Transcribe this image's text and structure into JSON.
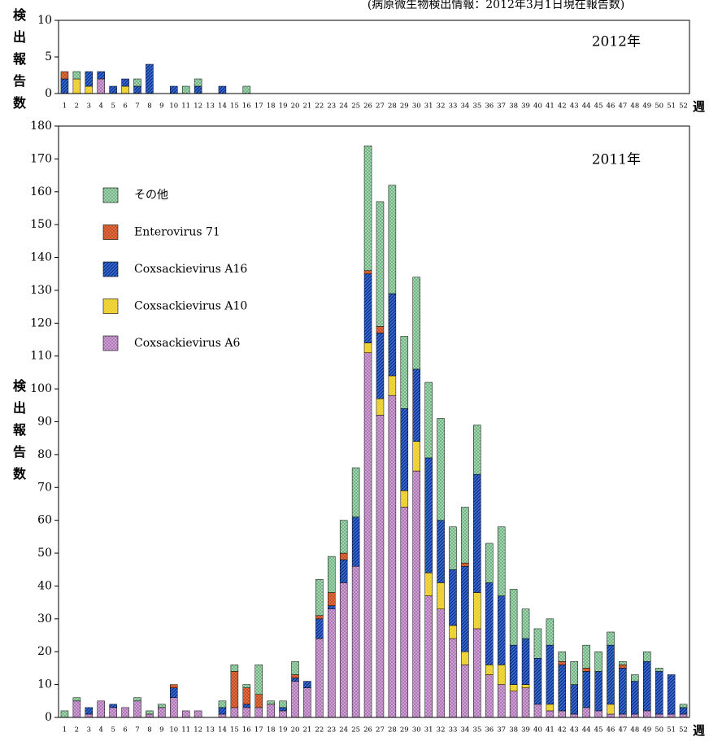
{
  "header": "(病原微生物検出情報：2012年3月1日現在報告数)",
  "chart_data": [
    {
      "type": "bar",
      "stacked": true,
      "title": "2012年",
      "ylabel": "検出報告数",
      "xlabel": "週",
      "categories": [
        "1",
        "2",
        "3",
        "4",
        "5",
        "6",
        "7",
        "8",
        "9",
        "10",
        "11",
        "12",
        "13",
        "14",
        "15",
        "16",
        "17",
        "18",
        "19",
        "20",
        "21",
        "22",
        "23",
        "24",
        "25",
        "26",
        "27",
        "28",
        "29",
        "30",
        "31",
        "32",
        "33",
        "34",
        "35",
        "36",
        "37",
        "38",
        "39",
        "40",
        "41",
        "42",
        "43",
        "44",
        "45",
        "46",
        "47",
        "48",
        "49",
        "50",
        "51",
        "52"
      ],
      "ylim": [
        0,
        10
      ],
      "yticks": [
        0,
        5,
        10
      ],
      "series": [
        {
          "name": "Coxsackievirus A6",
          "color": "#d9a0e0",
          "values": [
            0,
            0,
            0,
            2,
            0,
            0,
            0,
            0,
            0,
            0,
            0,
            0,
            0,
            0,
            0,
            0,
            null,
            null,
            null,
            null,
            null,
            null,
            null,
            null,
            null,
            null,
            null,
            null,
            null,
            null,
            null,
            null,
            null,
            null,
            null,
            null,
            null,
            null,
            null,
            null,
            null,
            null,
            null,
            null,
            null,
            null,
            null,
            null,
            null,
            null,
            null,
            null
          ]
        },
        {
          "name": "Coxsackievirus A10",
          "color": "#f5d83a",
          "values": [
            0,
            2,
            1,
            0,
            0,
            1,
            0,
            0,
            0,
            0,
            0,
            0,
            0,
            0,
            0,
            0,
            null,
            null,
            null,
            null,
            null,
            null,
            null,
            null,
            null,
            null,
            null,
            null,
            null,
            null,
            null,
            null,
            null,
            null,
            null,
            null,
            null,
            null,
            null,
            null,
            null,
            null,
            null,
            null,
            null,
            null,
            null,
            null,
            null,
            null,
            null,
            null
          ]
        },
        {
          "name": "Coxsackievirus A16",
          "color": "#3a6fd8",
          "values": [
            2,
            0,
            2,
            1,
            1,
            1,
            1,
            4,
            0,
            1,
            0,
            1,
            0,
            1,
            0,
            0,
            null,
            null,
            null,
            null,
            null,
            null,
            null,
            null,
            null,
            null,
            null,
            null,
            null,
            null,
            null,
            null,
            null,
            null,
            null,
            null,
            null,
            null,
            null,
            null,
            null,
            null,
            null,
            null,
            null,
            null,
            null,
            null,
            null,
            null,
            null,
            null
          ]
        },
        {
          "name": "Enterovirus 71",
          "color": "#f06a3a",
          "values": [
            1,
            0,
            0,
            0,
            0,
            0,
            0,
            0,
            0,
            0,
            0,
            0,
            0,
            0,
            0,
            0,
            null,
            null,
            null,
            null,
            null,
            null,
            null,
            null,
            null,
            null,
            null,
            null,
            null,
            null,
            null,
            null,
            null,
            null,
            null,
            null,
            null,
            null,
            null,
            null,
            null,
            null,
            null,
            null,
            null,
            null,
            null,
            null,
            null,
            null,
            null,
            null
          ]
        },
        {
          "name": "その他",
          "color": "#9fe0b0",
          "values": [
            0,
            1,
            0,
            0,
            0,
            0,
            1,
            0,
            0,
            0,
            1,
            1,
            0,
            0,
            0,
            1,
            null,
            null,
            null,
            null,
            null,
            null,
            null,
            null,
            null,
            null,
            null,
            null,
            null,
            null,
            null,
            null,
            null,
            null,
            null,
            null,
            null,
            null,
            null,
            null,
            null,
            null,
            null,
            null,
            null,
            null,
            null,
            null,
            null,
            null,
            null,
            null
          ]
        }
      ]
    },
    {
      "type": "bar",
      "stacked": true,
      "title": "2011年",
      "ylabel": "検出報告数",
      "xlabel": "週",
      "legend": "upper left",
      "categories": [
        "1",
        "2",
        "3",
        "4",
        "5",
        "6",
        "7",
        "8",
        "9",
        "10",
        "11",
        "12",
        "13",
        "14",
        "15",
        "16",
        "17",
        "18",
        "19",
        "20",
        "21",
        "22",
        "23",
        "24",
        "25",
        "26",
        "27",
        "28",
        "29",
        "30",
        "31",
        "32",
        "33",
        "34",
        "35",
        "36",
        "37",
        "38",
        "39",
        "40",
        "41",
        "42",
        "43",
        "44",
        "45",
        "46",
        "47",
        "48",
        "49",
        "50",
        "51",
        "52"
      ],
      "ylim": [
        0,
        180
      ],
      "yticks": [
        0,
        10,
        20,
        30,
        40,
        50,
        60,
        70,
        80,
        90,
        100,
        110,
        120,
        130,
        140,
        150,
        160,
        170,
        180
      ],
      "series": [
        {
          "name": "Coxsackievirus A6",
          "color": "#d9a0e0",
          "values": [
            0,
            5,
            1,
            5,
            3,
            3,
            5,
            1,
            3,
            6,
            2,
            2,
            0,
            1,
            3,
            3,
            3,
            4,
            2,
            11,
            9,
            24,
            33,
            41,
            46,
            111,
            92,
            98,
            64,
            75,
            37,
            33,
            24,
            16,
            27,
            13,
            10,
            8,
            9,
            4,
            2,
            2,
            1,
            3,
            2,
            1,
            1,
            1,
            2,
            1,
            1,
            1
          ]
        },
        {
          "name": "Coxsackievirus A10",
          "color": "#f5d83a",
          "values": [
            0,
            0,
            0,
            0,
            0,
            0,
            0,
            0,
            0,
            0,
            0,
            0,
            0,
            0,
            0,
            0,
            0,
            0,
            0,
            0,
            0,
            0,
            0,
            0,
            0,
            3,
            5,
            6,
            5,
            9,
            7,
            8,
            4,
            4,
            11,
            3,
            6,
            2,
            1,
            0,
            2,
            0,
            0,
            0,
            0,
            3,
            0,
            0,
            0,
            0,
            0,
            0
          ]
        },
        {
          "name": "Coxsackievirus A16",
          "color": "#3a6fd8",
          "values": [
            0,
            0,
            2,
            0,
            1,
            0,
            0,
            0,
            0,
            3,
            0,
            0,
            0,
            2,
            0,
            1,
            0,
            0,
            1,
            1,
            2,
            6,
            1,
            7,
            15,
            21,
            20,
            25,
            25,
            22,
            35,
            19,
            17,
            26,
            36,
            25,
            21,
            12,
            14,
            14,
            18,
            14,
            9,
            11,
            12,
            18,
            14,
            10,
            15,
            13,
            12,
            2
          ]
        },
        {
          "name": "Enterovirus 71",
          "color": "#f06a3a",
          "values": [
            0,
            0,
            0,
            0,
            0,
            0,
            0,
            0,
            0,
            1,
            0,
            0,
            0,
            0,
            11,
            5,
            4,
            0,
            0,
            1,
            0,
            1,
            4,
            2,
            0,
            1,
            2,
            0,
            0,
            0,
            0,
            0,
            0,
            1,
            0,
            0,
            0,
            0,
            0,
            0,
            0,
            1,
            0,
            1,
            0,
            0,
            1,
            0,
            0,
            0,
            0,
            0
          ]
        },
        {
          "name": "その他",
          "color": "#9fe0b0",
          "values": [
            2,
            1,
            0,
            0,
            0,
            0,
            1,
            1,
            1,
            0,
            0,
            0,
            0,
            2,
            2,
            1,
            9,
            1,
            2,
            4,
            0,
            11,
            11,
            10,
            15,
            38,
            38,
            33,
            22,
            28,
            23,
            31,
            13,
            17,
            15,
            12,
            21,
            17,
            9,
            9,
            8,
            3,
            7,
            7,
            6,
            4,
            1,
            2,
            3,
            1,
            0,
            1
          ]
        }
      ]
    }
  ]
}
